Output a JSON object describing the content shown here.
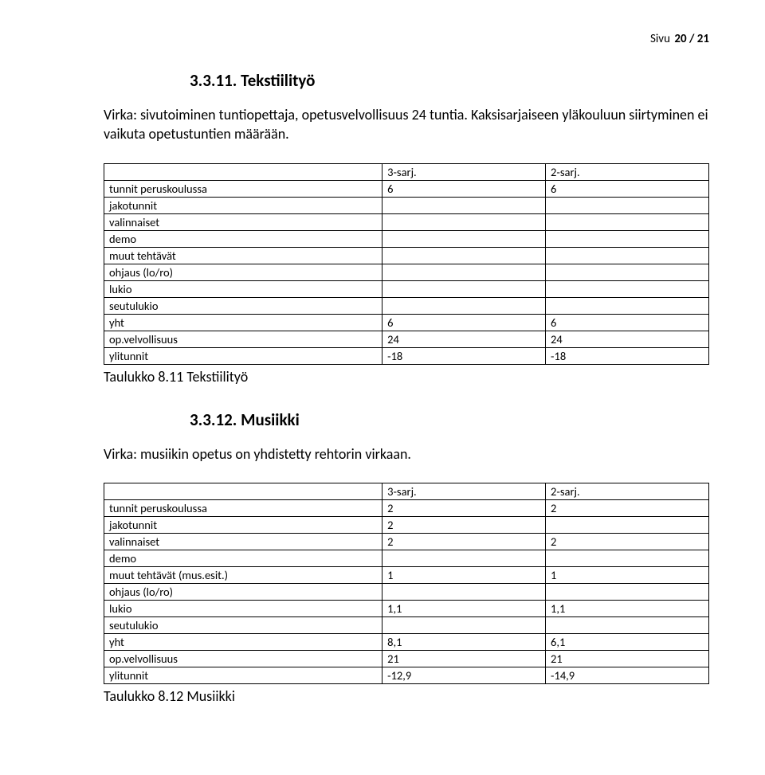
{
  "page_header": {
    "prefix": "Sivu ",
    "number": "20 / 21"
  },
  "section1": {
    "heading": "3.3.11. Tekstiilityö",
    "body": "Virka: sivutoiminen tuntiopettaja, opetusvelvollisuus 24 tuntia. Kaksisarjaiseen yläkouluun siirtyminen ei vaikuta opetustuntien määrään.",
    "table": {
      "columns": [
        "",
        "3-sarj.",
        "2-sarj."
      ],
      "rows": [
        [
          "tunnit peruskoulussa",
          "6",
          "6"
        ],
        [
          "jakotunnit",
          "",
          ""
        ],
        [
          "valinnaiset",
          "",
          ""
        ],
        [
          "demo",
          "",
          ""
        ],
        [
          "muut tehtävät",
          "",
          ""
        ],
        [
          "ohjaus (lo/ro)",
          "",
          ""
        ],
        [
          "lukio",
          "",
          ""
        ],
        [
          "seutulukio",
          "",
          ""
        ],
        [
          "yht",
          "6",
          "6"
        ],
        [
          "op.velvollisuus",
          "24",
          "24"
        ],
        [
          "ylitunnit",
          "-18",
          "-18"
        ]
      ]
    },
    "caption": "Taulukko 8.11 Tekstiilityö"
  },
  "section2": {
    "heading": "3.3.12. Musiikki",
    "body": "Virka: musiikin opetus on yhdistetty rehtorin virkaan.",
    "table": {
      "columns": [
        "",
        "3-sarj.",
        "2-sarj."
      ],
      "rows": [
        [
          "tunnit peruskoulussa",
          "2",
          "2"
        ],
        [
          "jakotunnit",
          "2",
          ""
        ],
        [
          "valinnaiset",
          "2",
          "2"
        ],
        [
          "demo",
          "",
          ""
        ],
        [
          "muut tehtävät (mus.esit.)",
          "1",
          "1"
        ],
        [
          "ohjaus (lo/ro)",
          "",
          ""
        ],
        [
          "lukio",
          "1,1",
          "1,1"
        ],
        [
          "seutulukio",
          "",
          ""
        ],
        [
          "yht",
          "8,1",
          "6,1"
        ],
        [
          "op.velvollisuus",
          "21",
          "21"
        ],
        [
          "ylitunnit",
          "-12,9",
          "-14,9"
        ]
      ]
    },
    "caption": "Taulukko 8.12 Musiikki"
  }
}
